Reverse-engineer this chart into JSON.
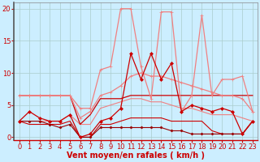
{
  "background_color": "#cceeff",
  "grid_color": "#aacccc",
  "xlabel": "Vent moyen/en rafales ( km/h )",
  "xlabel_color": "#cc0000",
  "xlabel_fontsize": 7,
  "tick_color": "#cc0000",
  "tick_fontsize": 6,
  "xlim": [
    -0.5,
    23.5
  ],
  "ylim": [
    -0.5,
    21
  ],
  "yticks": [
    0,
    5,
    10,
    15,
    20
  ],
  "xticks": [
    0,
    1,
    2,
    3,
    4,
    5,
    6,
    7,
    8,
    9,
    10,
    11,
    12,
    13,
    14,
    15,
    16,
    17,
    18,
    19,
    20,
    21,
    22,
    23
  ],
  "series": [
    {
      "x": [
        0,
        1,
        2,
        3,
        4,
        5,
        6,
        7,
        8,
        9,
        10,
        11,
        12,
        13,
        14,
        15,
        16,
        17,
        18,
        19,
        20,
        21,
        22,
        23
      ],
      "y": [
        6.5,
        6.5,
        6.5,
        6.5,
        6.5,
        6.5,
        4.5,
        4.5,
        10.5,
        11.0,
        20.0,
        20.0,
        11.0,
        6.0,
        19.5,
        19.5,
        4.0,
        6.5,
        19.0,
        6.5,
        9.0,
        9.0,
        9.5,
        4.0
      ],
      "color": "#f08080",
      "linewidth": 0.9,
      "marker": "+",
      "markersize": 3.5,
      "zorder": 4
    },
    {
      "x": [
        0,
        1,
        2,
        3,
        4,
        5,
        6,
        7,
        8,
        9,
        10,
        11,
        12,
        13,
        14,
        15,
        16,
        17,
        18,
        19,
        20,
        21,
        22,
        23
      ],
      "y": [
        6.5,
        6.5,
        6.5,
        6.5,
        6.5,
        6.5,
        3.0,
        4.0,
        6.5,
        7.0,
        8.0,
        9.5,
        10.0,
        9.5,
        9.5,
        9.0,
        8.5,
        8.0,
        7.5,
        7.0,
        6.5,
        6.5,
        6.0,
        4.0
      ],
      "color": "#f08080",
      "linewidth": 0.9,
      "marker": "+",
      "markersize": 3.5,
      "zorder": 4
    },
    {
      "x": [
        0,
        1,
        2,
        3,
        4,
        5,
        6,
        7,
        8,
        9,
        10,
        11,
        12,
        13,
        14,
        15,
        16,
        17,
        18,
        19,
        20,
        21,
        22,
        23
      ],
      "y": [
        2.5,
        2.5,
        2.5,
        2.5,
        2.5,
        3.5,
        2.0,
        2.0,
        4.5,
        5.0,
        5.5,
        6.0,
        6.0,
        5.5,
        5.5,
        5.0,
        4.5,
        4.5,
        4.0,
        3.5,
        3.5,
        3.5,
        3.0,
        2.5
      ],
      "color": "#f08080",
      "linewidth": 0.8,
      "marker": null,
      "markersize": 0,
      "zorder": 3
    },
    {
      "x": [
        0,
        1,
        2,
        3,
        4,
        5,
        6,
        7,
        8,
        9,
        10,
        11,
        12,
        13,
        14,
        15,
        16,
        17,
        18,
        19,
        20,
        21,
        22,
        23
      ],
      "y": [
        2.5,
        4.0,
        3.0,
        2.5,
        2.5,
        3.5,
        0.0,
        0.5,
        2.5,
        3.0,
        4.5,
        13.0,
        9.0,
        13.0,
        9.0,
        11.5,
        4.0,
        5.0,
        4.5,
        4.0,
        4.5,
        4.0,
        0.5,
        2.5
      ],
      "color": "#cc0000",
      "linewidth": 0.9,
      "marker": "D",
      "markersize": 2.0,
      "zorder": 6
    },
    {
      "x": [
        0,
        1,
        2,
        3,
        4,
        5,
        6,
        7,
        8,
        9,
        10,
        11,
        12,
        13,
        14,
        15,
        16,
        17,
        18,
        19,
        20,
        21,
        22,
        23
      ],
      "y": [
        6.5,
        6.5,
        6.5,
        6.5,
        6.5,
        6.5,
        2.0,
        3.5,
        6.0,
        6.0,
        6.0,
        6.5,
        6.5,
        6.5,
        6.5,
        6.5,
        6.5,
        6.5,
        6.5,
        6.5,
        6.5,
        6.5,
        6.5,
        6.5
      ],
      "color": "#cc0000",
      "linewidth": 0.9,
      "marker": null,
      "markersize": 0,
      "zorder": 3
    },
    {
      "x": [
        0,
        1,
        2,
        3,
        4,
        5,
        6,
        7,
        8,
        9,
        10,
        11,
        12,
        13,
        14,
        15,
        16,
        17,
        18,
        19,
        20,
        21,
        22,
        23
      ],
      "y": [
        2.5,
        2.0,
        2.0,
        2.0,
        2.0,
        2.5,
        0.0,
        0.0,
        2.0,
        2.0,
        2.5,
        3.0,
        3.0,
        3.0,
        3.0,
        2.5,
        2.5,
        2.5,
        2.5,
        1.0,
        0.5,
        0.5,
        0.5,
        2.5
      ],
      "color": "#cc0000",
      "linewidth": 0.8,
      "marker": null,
      "markersize": 0,
      "zorder": 3
    },
    {
      "x": [
        0,
        1,
        2,
        3,
        4,
        5,
        6,
        7,
        8,
        9,
        10,
        11,
        12,
        13,
        14,
        15,
        16,
        17,
        18,
        19,
        20,
        21,
        22,
        23
      ],
      "y": [
        2.5,
        2.5,
        2.5,
        2.0,
        1.5,
        2.0,
        0.0,
        0.0,
        1.5,
        1.5,
        1.5,
        1.5,
        1.5,
        1.5,
        1.5,
        1.0,
        1.0,
        0.5,
        0.5,
        0.5,
        0.5,
        0.5,
        0.5,
        2.5
      ],
      "color": "#990000",
      "linewidth": 0.8,
      "marker": "D",
      "markersize": 1.5,
      "zorder": 5
    }
  ]
}
